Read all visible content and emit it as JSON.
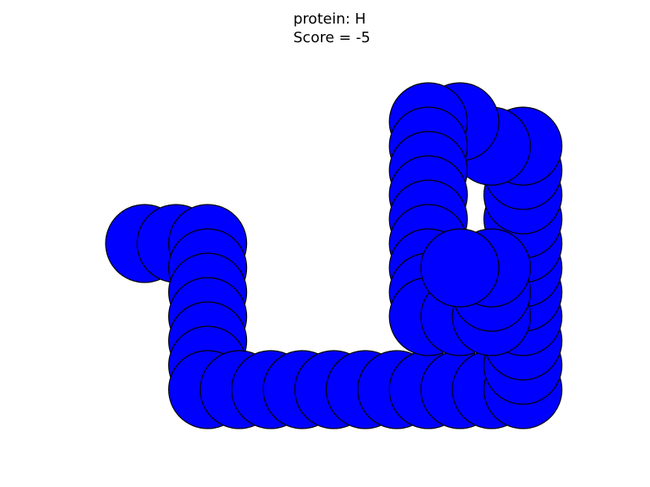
{
  "chart_data": {
    "type": "scatter",
    "title": "protein: H",
    "subtitle": "Score = -5",
    "color": "#0000ff",
    "edgecolor": "#000000",
    "x": [
      0,
      1,
      2,
      2,
      2,
      2,
      2,
      2,
      2,
      3,
      4,
      5,
      6,
      7,
      8,
      9,
      10,
      11,
      12,
      12,
      12,
      12,
      12,
      12,
      12,
      12,
      12,
      12,
      12,
      11,
      10,
      9,
      9,
      9,
      9,
      9,
      9,
      9,
      9,
      9,
      10,
      11,
      11,
      11,
      10
    ],
    "y": [
      0,
      0,
      0,
      -1,
      -2,
      -3,
      -4,
      -5,
      -6,
      -6,
      -6,
      -6,
      -6,
      -6,
      -6,
      -6,
      -6,
      -6,
      -6,
      -5,
      -4,
      -3,
      -2,
      -1,
      0,
      1,
      2,
      3,
      4,
      4,
      5,
      5,
      4,
      3,
      2,
      1,
      0,
      -1,
      -2,
      -3,
      -3,
      -3,
      -2,
      -1,
      -1
    ]
  }
}
